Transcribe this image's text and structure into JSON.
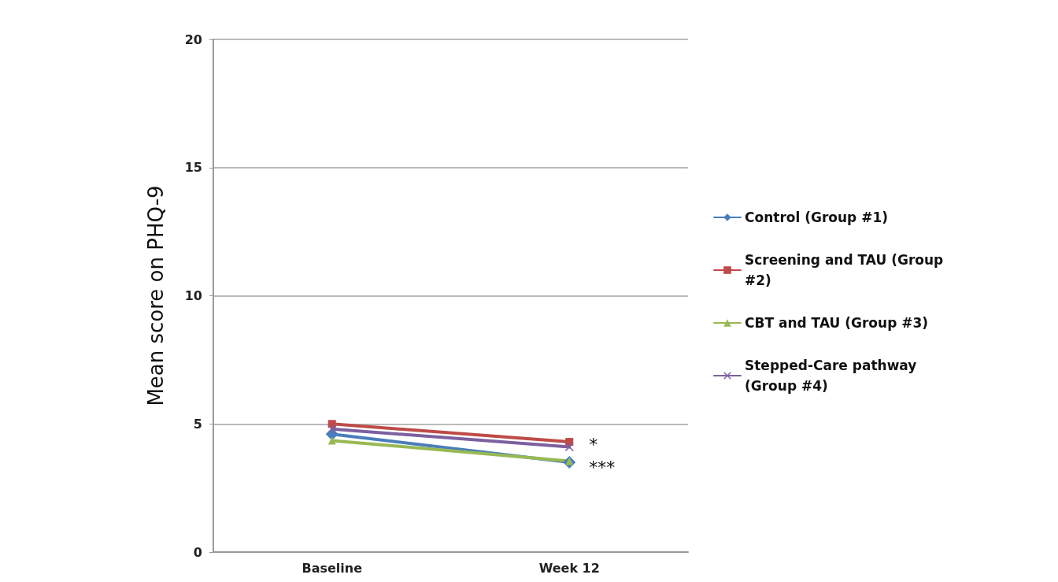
{
  "chart_data": {
    "type": "line",
    "ylabel": "Mean score on PHQ-9",
    "categories": [
      "Baseline",
      "Week 12"
    ],
    "series": [
      {
        "name": "Control (Group #1)",
        "color": "#4a7ebb",
        "marker": "diamond",
        "values": [
          4.6,
          3.5
        ]
      },
      {
        "name": "Screening and TAU (Group #2)",
        "color": "#be4b48",
        "marker": "square",
        "values": [
          5.0,
          4.3
        ]
      },
      {
        "name": "CBT and TAU (Group #3)",
        "color": "#98b954",
        "marker": "triangle",
        "values": [
          4.35,
          3.55
        ]
      },
      {
        "name": "Stepped-Care pathway (Group #4)",
        "color": "#7d60a0",
        "marker": "cross",
        "values": [
          4.8,
          4.1
        ]
      }
    ],
    "ylim": [
      0,
      20
    ],
    "yticks": [
      0,
      5,
      10,
      15,
      20
    ],
    "grid": "y",
    "legend": "right",
    "annotations": [
      {
        "text": "*",
        "x": "Week 12",
        "y": 4.2
      },
      {
        "text": "***",
        "x": "Week 12",
        "y": 3.3
      }
    ]
  }
}
